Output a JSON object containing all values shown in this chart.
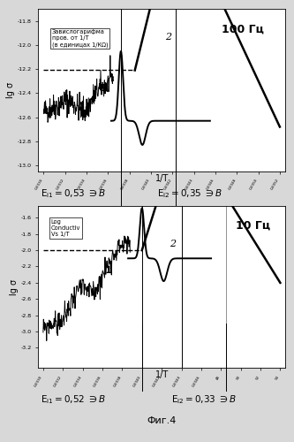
{
  "title_top": "100 Гц",
  "title_bottom": "10 Гц",
  "ylabel": "lg σ",
  "xlabel": "1/T",
  "annotation_top": "Завислогарифма\nпров. от 1/T\n(в единицах 1/КΩ)",
  "annotation_bottom": "Log\nConductiv\nVs 1/T",
  "ei1_top": "E$_{i1}$ = 0,53 эВ",
  "ei2_top": "E$_{i2}$ = 0,35 эВ",
  "ei1_bottom": "E$_{i1}$ = 0,52 эВ",
  "ei2_bottom": "E$_{i2}$ = 0,33 эВ",
  "fig_label": "Фиг.4",
  "bg_color": "#d8d8d8",
  "plot_bg": "#ffffff",
  "line_color": "#000000"
}
